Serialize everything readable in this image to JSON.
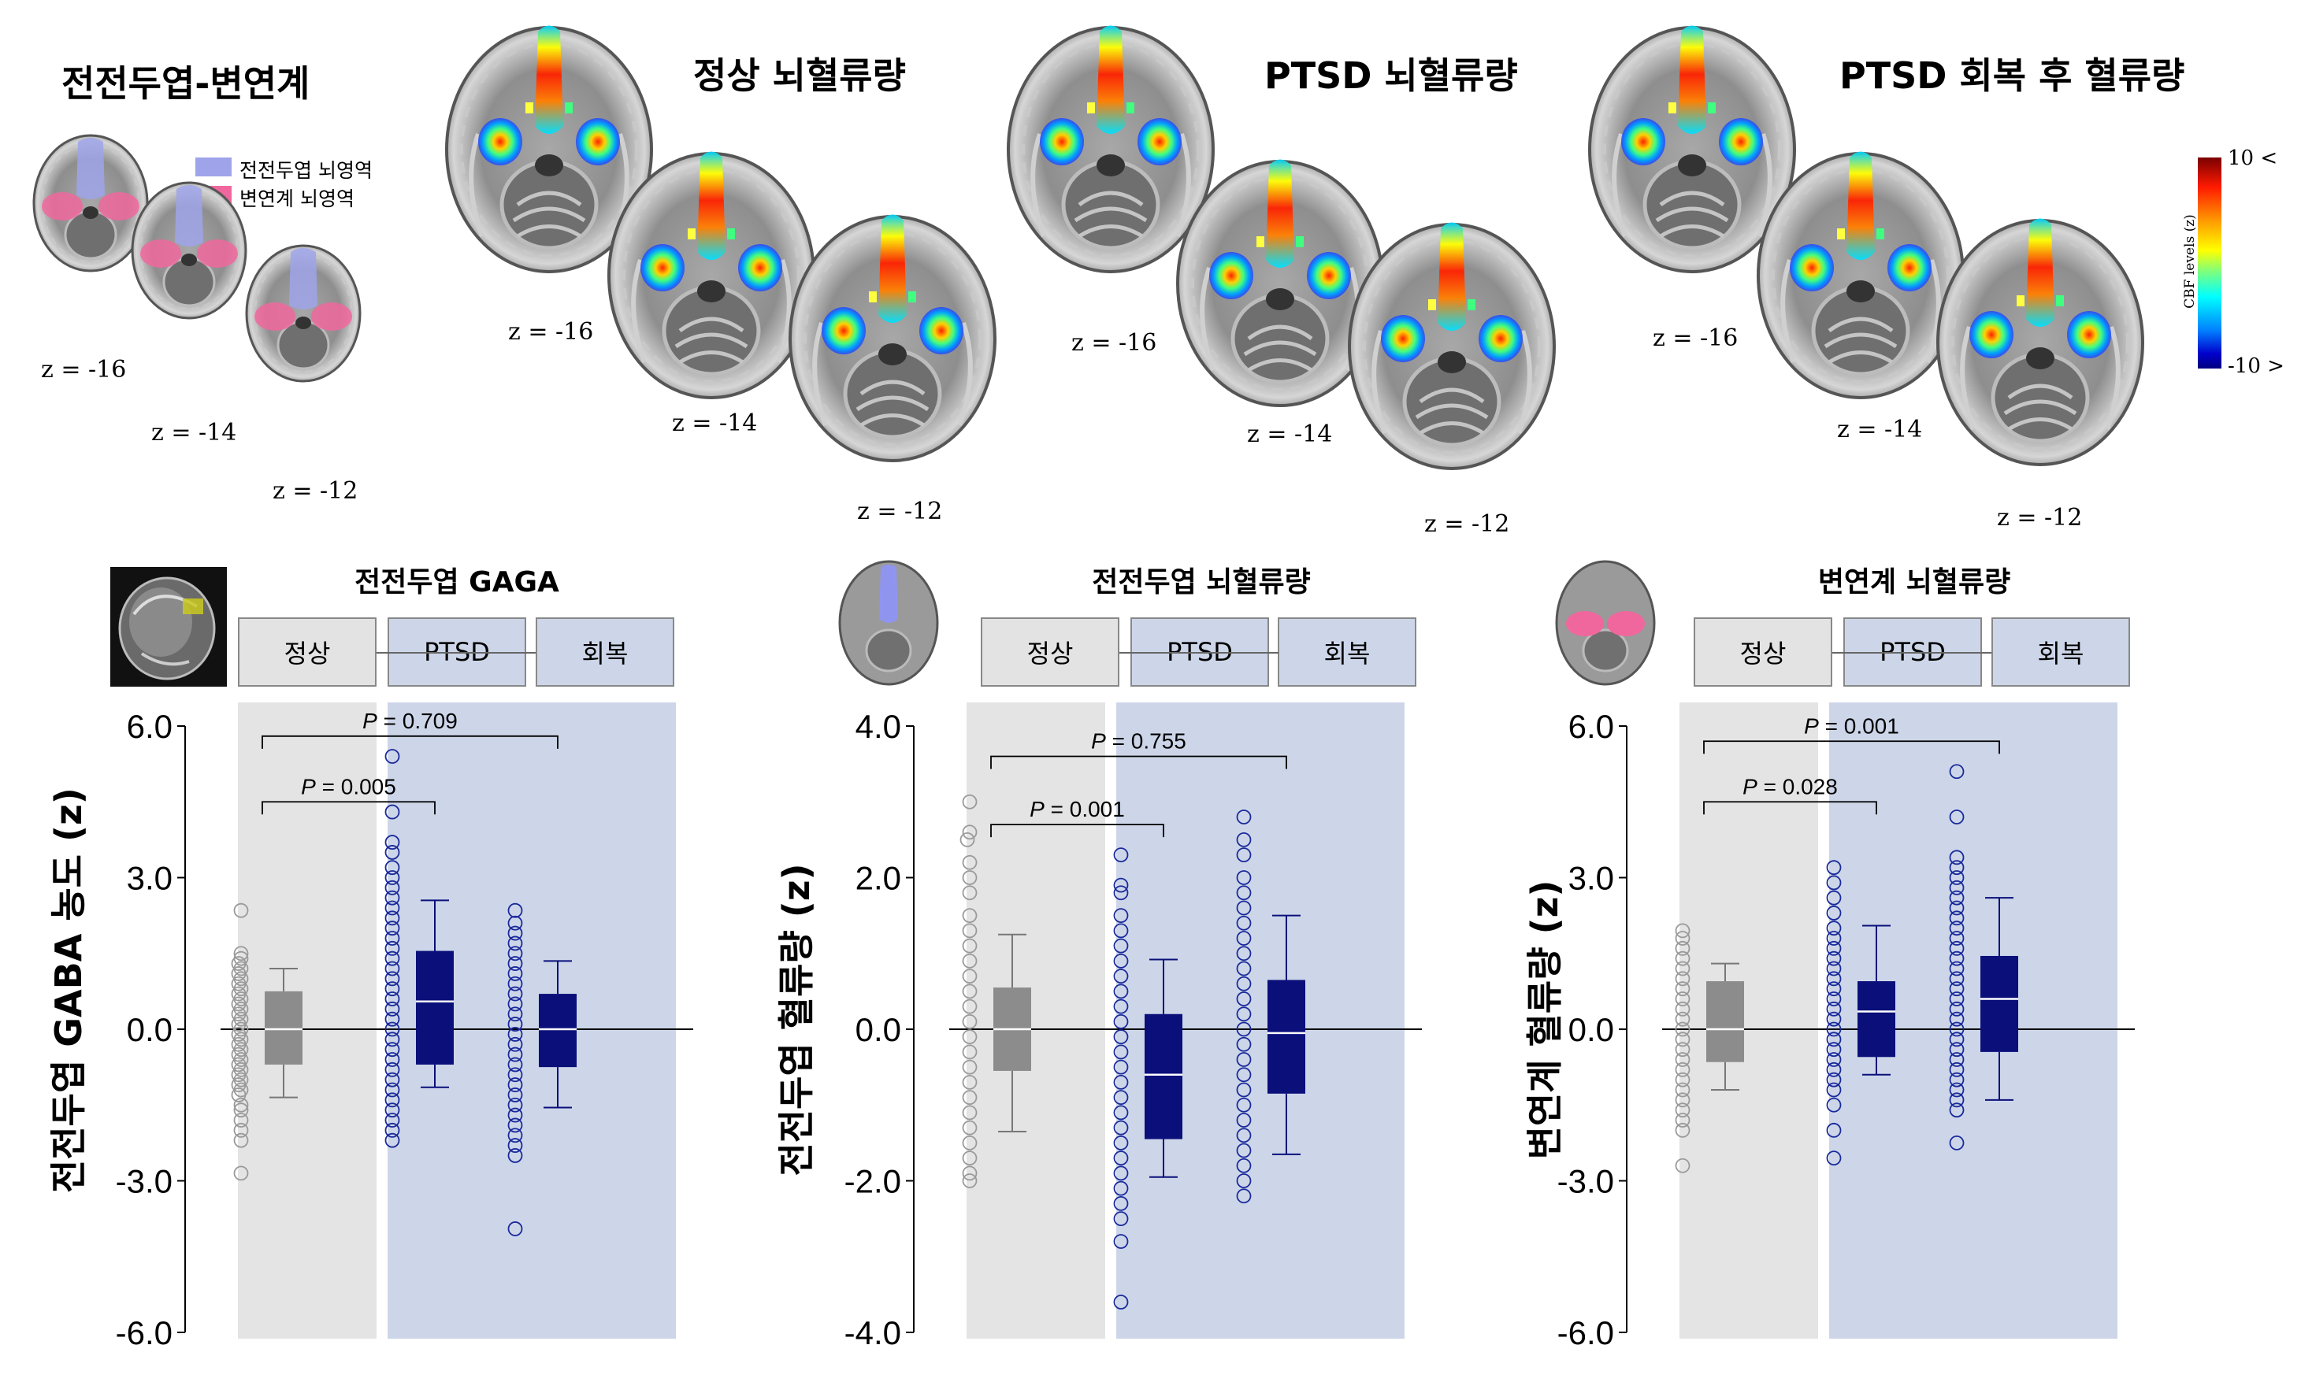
{
  "top": {
    "legend_panel": {
      "title": "전전두엽-변연계",
      "legend": [
        {
          "label": "전전두엽 뇌영역",
          "color": "#9fa4ea"
        },
        {
          "label": "변연계 뇌영역",
          "color": "#f0679e"
        }
      ],
      "slices": [
        "z = -16",
        "z = -14",
        "z = -12"
      ]
    },
    "panels": [
      {
        "title": "정상 뇌혈류량",
        "slices": [
          "z = -16",
          "z = -14",
          "z = -12"
        ]
      },
      {
        "title": "PTSD 뇌혈류량",
        "slices": [
          "z = -16",
          "z = -14",
          "z = -12"
        ]
      },
      {
        "title": "PTSD 회복 후 혈류량",
        "slices": [
          "z = -16",
          "z = -14",
          "z = -12"
        ]
      }
    ],
    "colorbar": {
      "label": "CBF levels (z)",
      "max": "10 <",
      "min": "-10 >"
    }
  },
  "colors": {
    "normal_dots": "#9a9a9a",
    "normal_box": "#8c8c8c",
    "ptsd_box": "#0a0f7a",
    "ptsd_dots": "#1a2a9a",
    "normal_bg": "#e4e4e4",
    "ptsd_bg": "#cdd6e9"
  },
  "chart_data": [
    {
      "type": "box",
      "title": "전전두엽 GAGA",
      "ylabel": "전전두엽 GABA 농도 (z)",
      "ylim": [
        -6,
        6
      ],
      "yticks": [
        "6.0",
        "3.0",
        "0.0",
        "-3.0",
        "-6.0"
      ],
      "ytick_values": [
        6,
        3,
        0,
        -3,
        -6
      ],
      "groups": [
        "정상",
        "PTSD",
        "회복"
      ],
      "boxes": [
        {
          "whisker_low": -1.35,
          "q1": -0.7,
          "median": 0.0,
          "q3": 0.75,
          "whisker_high": 1.2
        },
        {
          "whisker_low": -1.15,
          "q1": -0.7,
          "median": 0.55,
          "q3": 1.55,
          "whisker_high": 2.55
        },
        {
          "whisker_low": -1.55,
          "q1": -0.75,
          "median": 0.0,
          "q3": 0.7,
          "whisker_high": 1.35
        }
      ],
      "points": [
        [
          2.35,
          1.5,
          1.4,
          1.3,
          1.2,
          1.1,
          1.0,
          0.9,
          0.8,
          0.7,
          0.6,
          0.5,
          0.4,
          0.3,
          0.2,
          0.1,
          0.0,
          -0.1,
          -0.2,
          -0.3,
          -0.4,
          -0.5,
          -0.6,
          -0.7,
          -0.8,
          -0.9,
          -1.0,
          -1.1,
          -1.2,
          -1.3,
          -1.5,
          -1.6,
          -1.8,
          -2.0,
          -2.2,
          -2.85
        ],
        [
          5.4,
          4.3,
          3.7,
          3.5,
          3.2,
          3.0,
          2.8,
          2.6,
          2.4,
          2.2,
          2.0,
          1.8,
          1.6,
          1.4,
          1.2,
          1.0,
          0.8,
          0.6,
          0.4,
          0.2,
          0.0,
          -0.2,
          -0.4,
          -0.6,
          -0.8,
          -1.0,
          -1.2,
          -1.4,
          -1.6,
          -1.8,
          -2.0,
          -2.2
        ],
        [
          2.35,
          2.1,
          1.9,
          1.7,
          1.5,
          1.3,
          1.1,
          0.9,
          0.7,
          0.5,
          0.3,
          0.1,
          -0.1,
          -0.3,
          -0.5,
          -0.7,
          -0.9,
          -1.1,
          -1.3,
          -1.5,
          -1.7,
          -1.9,
          -2.1,
          -2.3,
          -2.5,
          -3.95
        ]
      ],
      "comparisons": [
        {
          "from": 0,
          "to": 1,
          "label": "P = 0.005",
          "y": 4.5
        },
        {
          "from": 0,
          "to": 2,
          "label": "P = 0.709",
          "y": 5.8
        }
      ]
    },
    {
      "type": "box",
      "title": "전전두엽 뇌혈류량",
      "ylabel": "전전두엽 혈류량 (z)",
      "ylim": [
        -4,
        4
      ],
      "yticks": [
        "4.0",
        "2.0",
        "0.0",
        "-2.0",
        "-4.0"
      ],
      "ytick_values": [
        4,
        2,
        0,
        -2,
        -4
      ],
      "groups": [
        "정상",
        "PTSD",
        "회복"
      ],
      "boxes": [
        {
          "whisker_low": -1.35,
          "q1": -0.55,
          "median": 0.0,
          "q3": 0.55,
          "whisker_high": 1.25
        },
        {
          "whisker_low": -1.95,
          "q1": -1.45,
          "median": -0.6,
          "q3": 0.2,
          "whisker_high": 0.92
        },
        {
          "whisker_low": -1.65,
          "q1": -0.85,
          "median": -0.05,
          "q3": 0.65,
          "whisker_high": 1.5
        }
      ],
      "points": [
        [
          3.0,
          2.6,
          2.5,
          2.2,
          2.0,
          1.8,
          1.5,
          1.3,
          1.1,
          0.9,
          0.7,
          0.5,
          0.3,
          0.1,
          -0.1,
          -0.3,
          -0.5,
          -0.7,
          -0.9,
          -1.1,
          -1.3,
          -1.5,
          -1.7,
          -1.9,
          -2.0
        ],
        [
          2.3,
          1.9,
          1.8,
          1.5,
          1.3,
          1.1,
          0.9,
          0.7,
          0.5,
          0.3,
          0.1,
          -0.1,
          -0.3,
          -0.5,
          -0.7,
          -0.9,
          -1.1,
          -1.3,
          -1.5,
          -1.7,
          -1.9,
          -2.1,
          -2.3,
          -2.5,
          -2.8,
          -3.6
        ],
        [
          2.8,
          2.5,
          2.3,
          2.0,
          1.8,
          1.6,
          1.4,
          1.2,
          1.0,
          0.8,
          0.6,
          0.4,
          0.2,
          0.0,
          -0.2,
          -0.4,
          -0.6,
          -0.8,
          -1.0,
          -1.2,
          -1.4,
          -1.6,
          -1.8,
          -2.0,
          -2.2
        ]
      ],
      "comparisons": [
        {
          "from": 0,
          "to": 1,
          "label": "P = 0.001",
          "y": 2.7
        },
        {
          "from": 0,
          "to": 2,
          "label": "P = 0.755",
          "y": 3.6
        }
      ]
    },
    {
      "type": "box",
      "title": "변연계 뇌혈류량",
      "ylabel": "변연계 혈류량 (z)",
      "ylim": [
        -6,
        6
      ],
      "yticks": [
        "6.0",
        "3.0",
        "0.0",
        "-3.0",
        "-6.0"
      ],
      "ytick_values": [
        6,
        3,
        0,
        -3,
        -6
      ],
      "groups": [
        "정상",
        "PTSD",
        "회복"
      ],
      "boxes": [
        {
          "whisker_low": -1.2,
          "q1": -0.65,
          "median": 0.0,
          "q3": 0.95,
          "whisker_high": 1.3
        },
        {
          "whisker_low": -0.9,
          "q1": -0.55,
          "median": 0.35,
          "q3": 0.95,
          "whisker_high": 2.05
        },
        {
          "whisker_low": -1.4,
          "q1": -0.45,
          "median": 0.6,
          "q3": 1.45,
          "whisker_high": 2.6
        }
      ],
      "points": [
        [
          1.95,
          1.8,
          1.6,
          1.4,
          1.2,
          1.0,
          0.8,
          0.6,
          0.4,
          0.2,
          0.0,
          -0.2,
          -0.4,
          -0.6,
          -0.8,
          -1.0,
          -1.2,
          -1.4,
          -1.6,
          -1.8,
          -2.0,
          -2.7
        ],
        [
          3.2,
          2.9,
          2.6,
          2.3,
          2.0,
          1.8,
          1.6,
          1.4,
          1.2,
          1.0,
          0.8,
          0.6,
          0.4,
          0.2,
          0.0,
          -0.2,
          -0.4,
          -0.6,
          -0.8,
          -1.0,
          -1.2,
          -1.5,
          -2.0,
          -2.55
        ],
        [
          5.1,
          4.2,
          3.4,
          3.2,
          3.0,
          2.8,
          2.6,
          2.4,
          2.2,
          2.0,
          1.8,
          1.6,
          1.4,
          1.2,
          1.0,
          0.8,
          0.6,
          0.4,
          0.2,
          0.0,
          -0.2,
          -0.4,
          -0.6,
          -0.8,
          -1.0,
          -1.2,
          -1.4,
          -1.6,
          -2.25
        ]
      ],
      "comparisons": [
        {
          "from": 0,
          "to": 1,
          "label": "P = 0.028",
          "y": 4.5
        },
        {
          "from": 0,
          "to": 2,
          "label": "P = 0.001",
          "y": 5.7
        }
      ]
    }
  ]
}
